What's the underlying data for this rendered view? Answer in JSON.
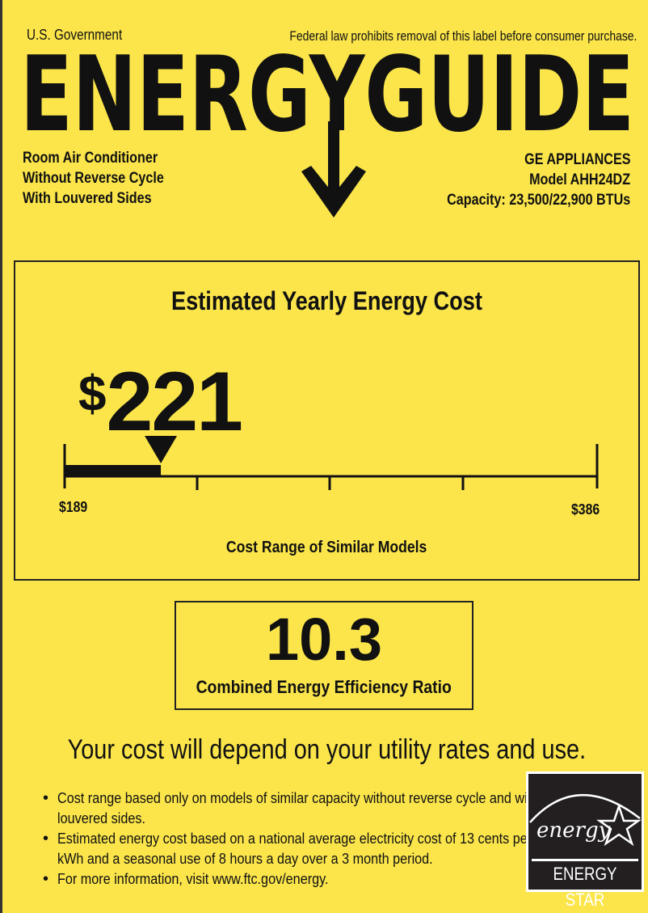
{
  "header": {
    "government": "U.S. Government",
    "notice": "Federal law prohibits removal of this label before consumer purchase.",
    "logo": "ENERGYGUIDE"
  },
  "product": {
    "lines": [
      "Room Air Conditioner",
      "Without Reverse Cycle",
      "With Louvered Sides"
    ]
  },
  "manufacturer": {
    "brand": "GE APPLIANCES",
    "model": "Model AHH24DZ",
    "capacity": "Capacity: 23,500/22,900 BTUs"
  },
  "cost": {
    "title": "Estimated Yearly Energy Cost",
    "currency": "$",
    "value": "221",
    "amount": 221,
    "min": 189,
    "max": 386,
    "min_label": "$189",
    "max_label": "$386",
    "range_label": "Cost Range of Similar Models"
  },
  "efficiency": {
    "value": "10.3",
    "label": "Combined Energy Efficiency Ratio"
  },
  "disclaimer": "Your cost will depend on your utility rates and use.",
  "notes": [
    "Cost range based only on models of similar capacity without reverse cycle and with louvered sides.",
    "Estimated energy cost based on a national average electricity cost of 13 cents per kWh and a seasonal use of 8 hours a day over a 3 month period.",
    "For more information, visit www.ftc.gov/energy."
  ],
  "energy_star": {
    "script": "energy",
    "label": "ENERGY STAR"
  },
  "colors": {
    "background": "#fbe54b",
    "ink": "#111111"
  }
}
